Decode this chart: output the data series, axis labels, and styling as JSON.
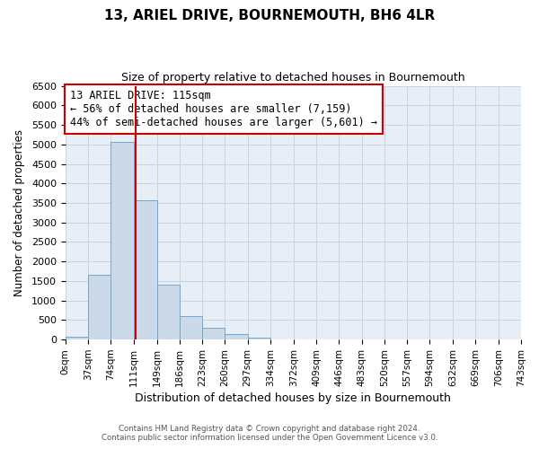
{
  "title": "13, ARIEL DRIVE, BOURNEMOUTH, BH6 4LR",
  "subtitle": "Size of property relative to detached houses in Bournemouth",
  "xlabel": "Distribution of detached houses by size in Bournemouth",
  "ylabel": "Number of detached properties",
  "bar_edges": [
    0,
    37,
    74,
    111,
    149,
    186,
    223,
    260,
    297,
    334,
    372,
    409,
    446,
    483,
    520,
    557,
    594,
    632,
    669,
    706,
    743
  ],
  "bar_heights": [
    75,
    1650,
    5070,
    3580,
    1400,
    610,
    300,
    150,
    50,
    0,
    0,
    0,
    0,
    0,
    0,
    0,
    0,
    0,
    0,
    0
  ],
  "property_line_x": 115,
  "bar_facecolor": "#ccd9e8",
  "bar_edgecolor": "#6fa8d0",
  "line_color": "#cc0000",
  "annotation_text": "13 ARIEL DRIVE: 115sqm\n← 56% of detached houses are smaller (7,159)\n44% of semi-detached houses are larger (5,601) →",
  "annotation_box_edgecolor": "#cc0000",
  "annotation_fontsize": 8.5,
  "ylim": [
    0,
    6500
  ],
  "yticks": [
    0,
    500,
    1000,
    1500,
    2000,
    2500,
    3000,
    3500,
    4000,
    4500,
    5000,
    5500,
    6000,
    6500
  ],
  "tick_labels": [
    "0sqm",
    "37sqm",
    "74sqm",
    "111sqm",
    "149sqm",
    "186sqm",
    "223sqm",
    "260sqm",
    "297sqm",
    "334sqm",
    "372sqm",
    "409sqm",
    "446sqm",
    "483sqm",
    "520sqm",
    "557sqm",
    "594sqm",
    "632sqm",
    "669sqm",
    "706sqm",
    "743sqm"
  ],
  "footer_line1": "Contains HM Land Registry data © Crown copyright and database right 2024.",
  "footer_line2": "Contains public sector information licensed under the Open Government Licence v3.0.",
  "background_color": "#ffffff",
  "plot_bg_color": "#e8eef5",
  "grid_color": "#c8d4e3",
  "title_fontsize": 11,
  "subtitle_fontsize": 9,
  "xlabel_fontsize": 9,
  "ylabel_fontsize": 8.5,
  "tick_fontsize": 7.5,
  "ytick_fontsize": 8
}
